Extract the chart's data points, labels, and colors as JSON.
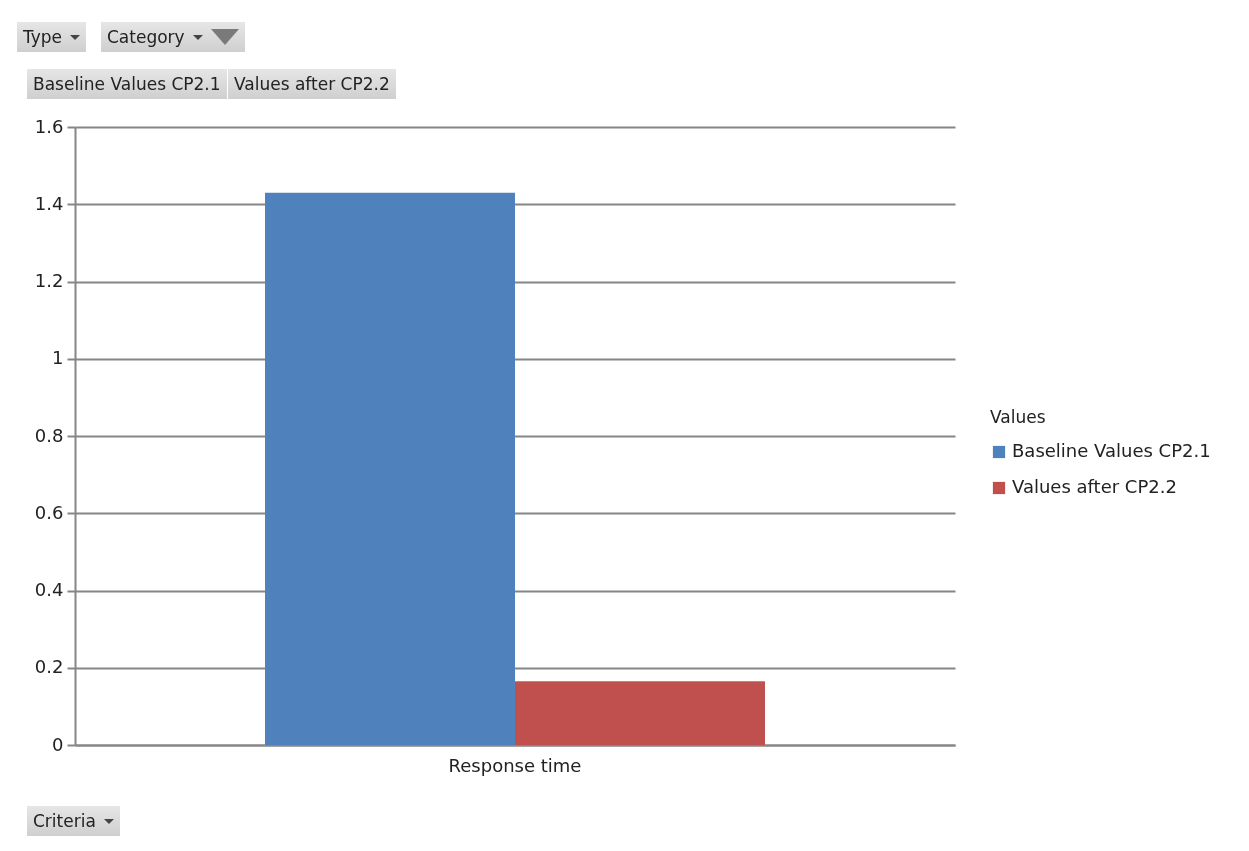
{
  "chart_data": {
    "type": "bar",
    "categories": [
      "Response time"
    ],
    "series": [
      {
        "name": "Baseline Values CP2.1",
        "color": "#4f81bd",
        "values": [
          1.43
        ]
      },
      {
        "name": "Values after CP2.2",
        "color": "#c0504d",
        "values": [
          0.165
        ]
      }
    ],
    "ylim": [
      0,
      1.6
    ],
    "yticks": [
      0,
      0.2,
      0.4,
      0.6,
      0.8,
      1,
      1.2,
      1.4,
      1.6
    ],
    "grid": "y",
    "legend": "right",
    "legend_title": "Values",
    "annotations": [
      "Type",
      "Category",
      "Baseline Values CP2.1",
      "Values after CP2.2",
      "Criteria"
    ]
  }
}
